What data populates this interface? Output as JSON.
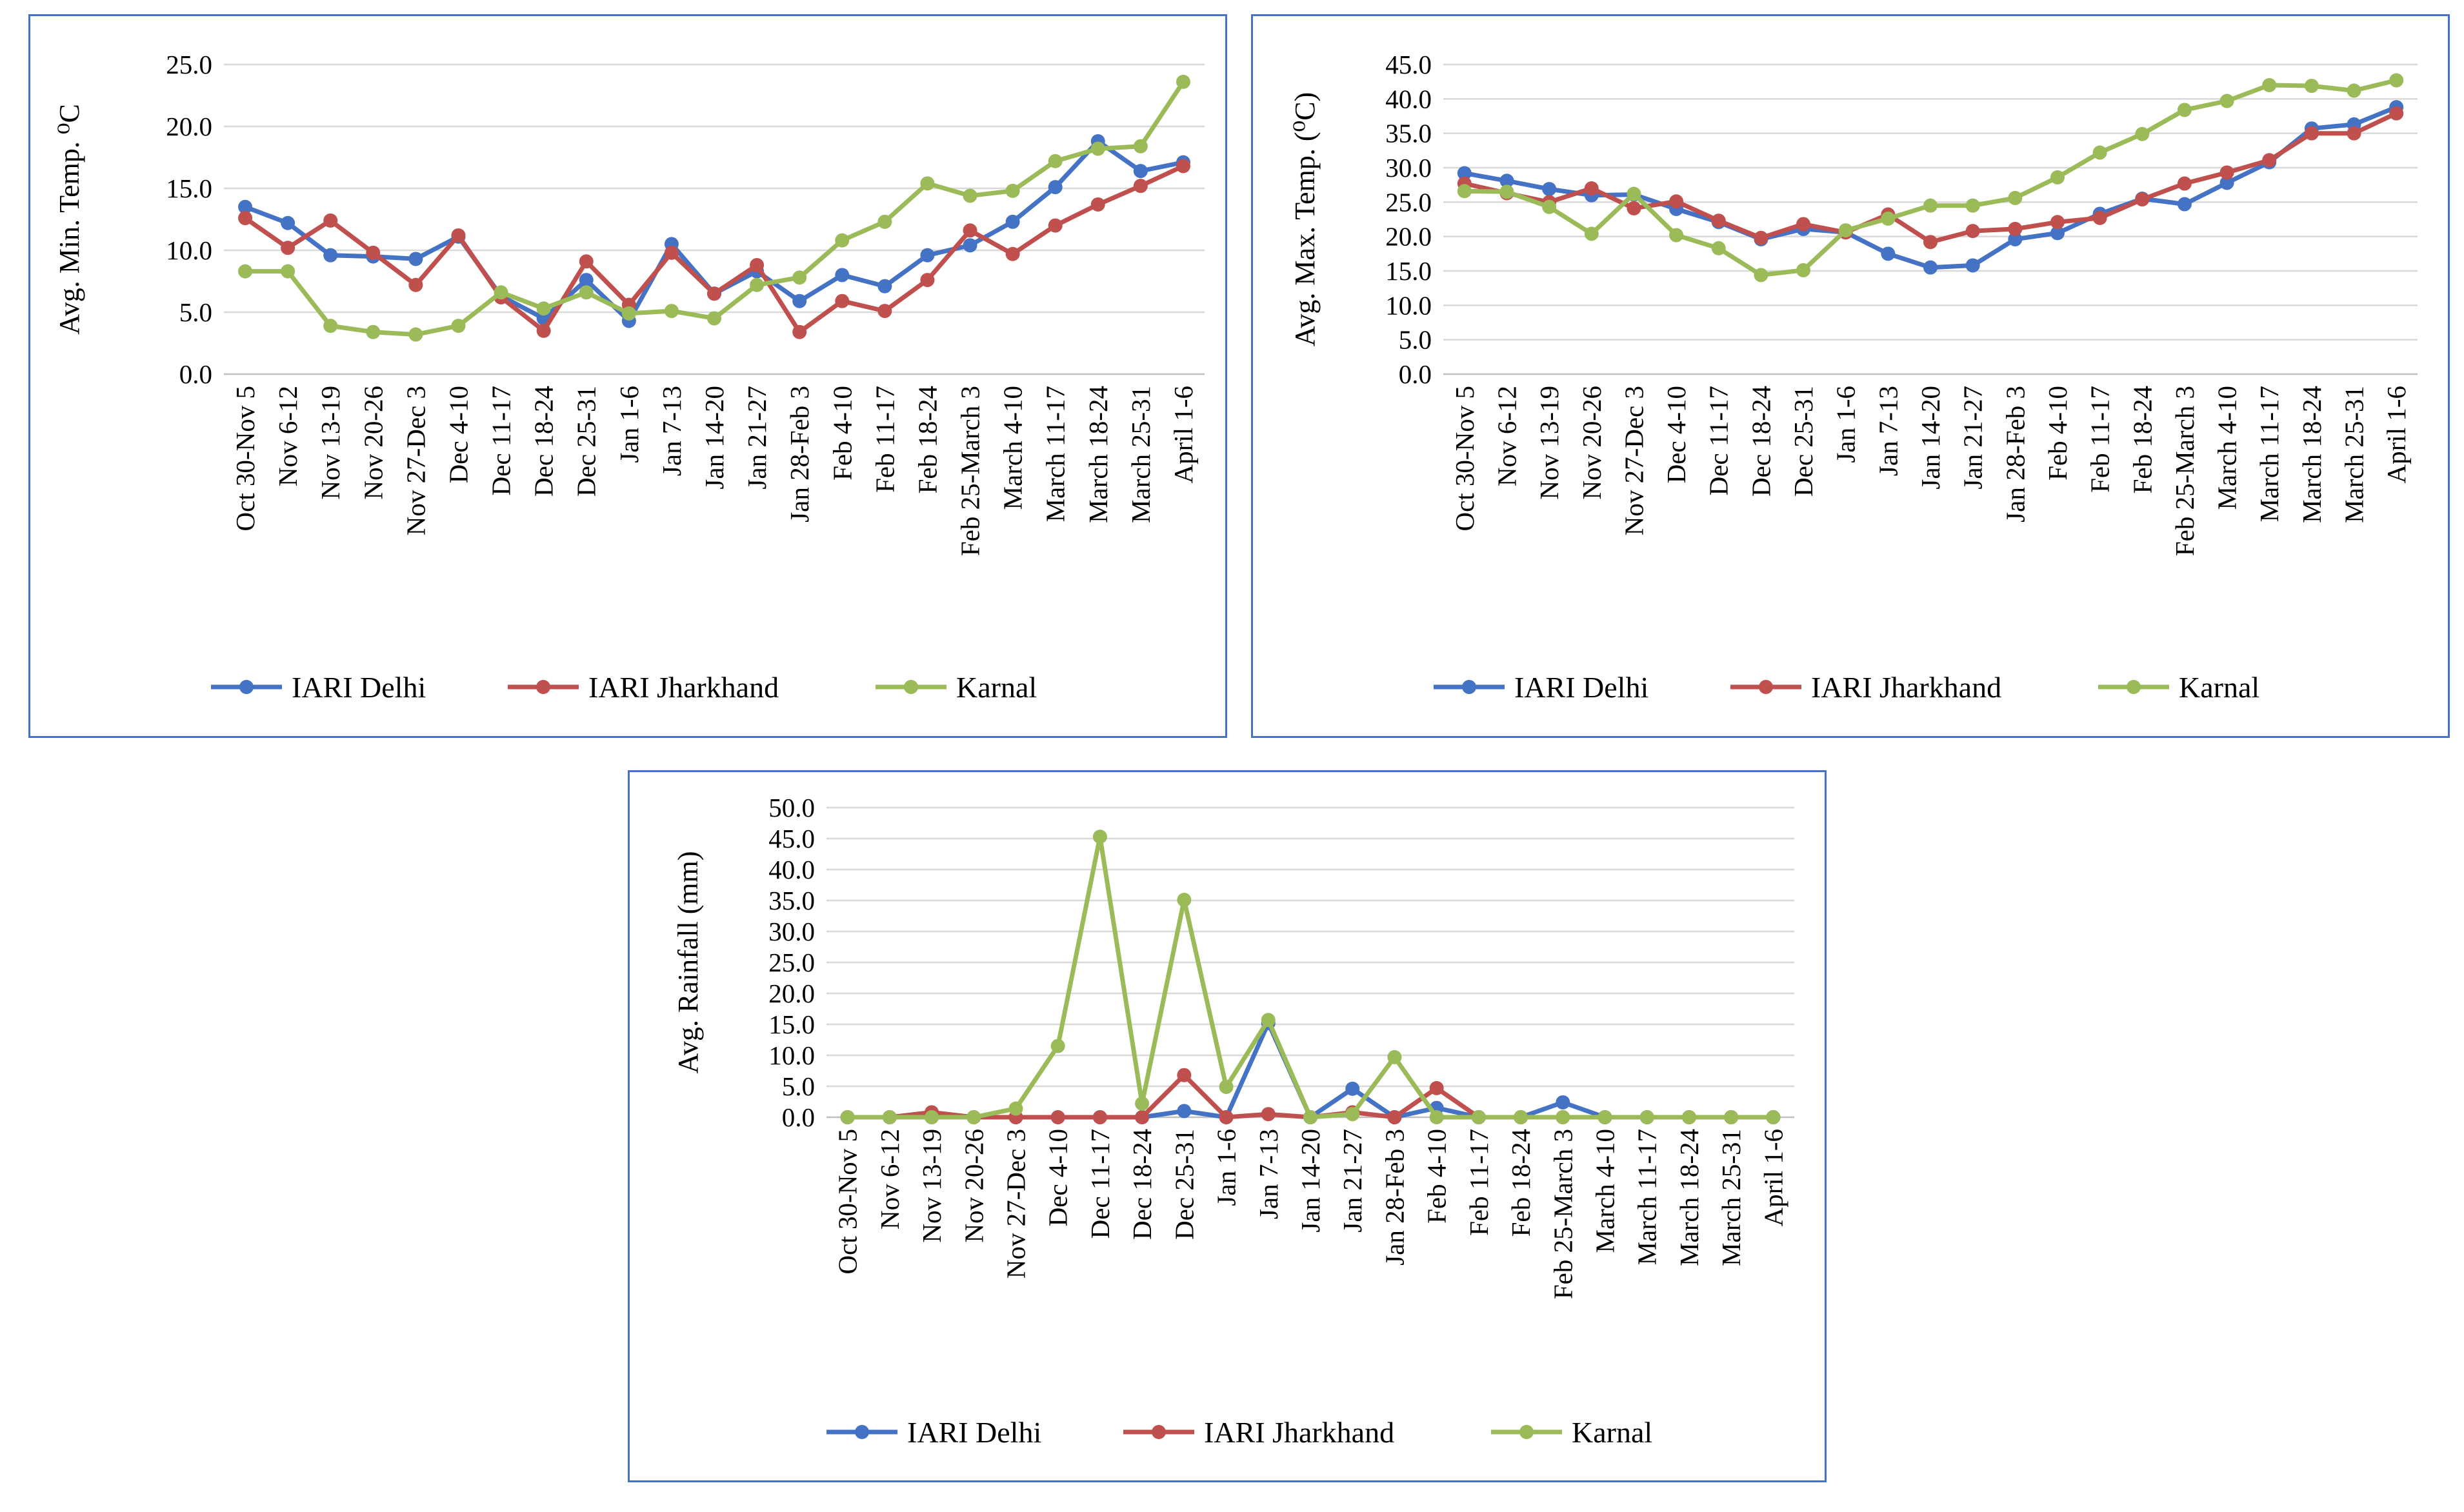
{
  "categories": [
    "Oct 30-Nov 5",
    "Nov 6-12",
    "Nov 13-19",
    "Nov 20-26",
    "Nov 27-Dec 3",
    "Dec 4-10",
    "Dec 11-17",
    "Dec 18-24",
    "Dec 25-31",
    "Jan 1-6",
    "Jan 7-13",
    "Jan 14-20",
    "Jan 21-27",
    "Jan 28-Feb 3",
    "Feb 4-10",
    "Feb 11-17",
    "Feb 18-24",
    "Feb 25-March 3",
    "March 4-10",
    "March 11-17",
    "March 18-24",
    "March 25-31",
    "April 1-6"
  ],
  "colors": {
    "IARI Delhi": "#4472C4",
    "IARI Jharkhand": "#C0504D",
    "Karnal": "#9BBB59"
  },
  "chart_data": [
    {
      "type": "line",
      "id": "min",
      "ylabel": "Avg. Min. Temp. ⁰C",
      "ylim": [
        0,
        25
      ],
      "yticks": [
        "0.0",
        "5.0",
        "10.0",
        "15.0",
        "20.0",
        "25.0"
      ],
      "tick_values": [
        0,
        5,
        10,
        15,
        20,
        25
      ],
      "legend_position": "bottom",
      "series": [
        {
          "name": "IARI Delhi",
          "values": [
            13.5,
            12.2,
            9.6,
            9.5,
            9.3,
            11.1,
            6.3,
            4.5,
            7.6,
            4.3,
            10.5,
            6.5,
            8.3,
            5.9,
            8,
            7.1,
            9.6,
            10.4,
            12.3,
            15.1,
            18.8,
            16.4,
            17.1
          ]
        },
        {
          "name": "IARI Jharkhand",
          "values": [
            12.6,
            10.2,
            12.4,
            9.8,
            7.2,
            11.2,
            6.2,
            3.5,
            9.1,
            5.6,
            9.8,
            6.5,
            8.8,
            3.4,
            5.9,
            5.1,
            7.6,
            11.6,
            9.7,
            12,
            13.7,
            15.2,
            16.8
          ]
        },
        {
          "name": "Karnal",
          "values": [
            8.3,
            8.3,
            3.9,
            3.4,
            3.2,
            3.9,
            6.6,
            5.3,
            6.6,
            4.9,
            5.1,
            4.5,
            7.2,
            7.8,
            10.8,
            12.3,
            15.4,
            14.4,
            14.8,
            17.2,
            18.2,
            18.4,
            23.6
          ]
        }
      ]
    },
    {
      "type": "line",
      "id": "max",
      "ylabel": "Avg. Max. Temp. (⁰C)",
      "ylim": [
        0,
        45
      ],
      "yticks": [
        "0.0",
        "5.0",
        "10.0",
        "15.0",
        "20.0",
        "25.0",
        "30.0",
        "35.0",
        "40.0",
        "45.0"
      ],
      "tick_values": [
        0,
        5,
        10,
        15,
        20,
        25,
        30,
        35,
        40,
        45
      ],
      "legend_position": "bottom",
      "series": [
        {
          "name": "IARI Delhi",
          "values": [
            29.2,
            28.1,
            26.9,
            26,
            26.1,
            24,
            22.1,
            19.6,
            21.1,
            20.6,
            17.5,
            15.5,
            15.8,
            19.6,
            20.5,
            23.3,
            25.5,
            24.7,
            27.8,
            30.8,
            35.7,
            36.3,
            38.8
          ]
        },
        {
          "name": "IARI Jharkhand",
          "values": [
            27.7,
            26.3,
            25,
            27,
            24.1,
            25.1,
            22.3,
            19.8,
            21.8,
            20.6,
            23.2,
            19.2,
            20.8,
            21.1,
            22.1,
            22.7,
            25.4,
            27.7,
            29.3,
            31.1,
            35,
            35,
            37.9
          ]
        },
        {
          "name": "Karnal",
          "values": [
            26.6,
            26.5,
            24.3,
            20.4,
            26.2,
            20.2,
            18.3,
            14.4,
            15.1,
            20.9,
            22.6,
            24.5,
            24.5,
            25.6,
            28.6,
            32.2,
            34.9,
            38.4,
            39.7,
            42,
            41.9,
            41.2,
            42.7
          ]
        }
      ]
    },
    {
      "type": "line",
      "id": "rain",
      "ylabel": "Avg. Rainfall (mm)",
      "ylim": [
        0,
        50
      ],
      "yticks": [
        "0.0",
        "5.0",
        "10.0",
        "15.0",
        "20.0",
        "25.0",
        "30.0",
        "35.0",
        "40.0",
        "45.0",
        "50.0"
      ],
      "tick_values": [
        0,
        5,
        10,
        15,
        20,
        25,
        30,
        35,
        40,
        45,
        50
      ],
      "legend_position": "bottom",
      "series": [
        {
          "name": "IARI Delhi",
          "values": [
            0,
            0,
            0,
            0,
            0,
            0,
            0,
            0,
            1,
            0,
            15.2,
            0,
            4.6,
            0,
            1.5,
            0,
            0,
            2.4,
            0,
            0,
            0,
            0,
            0
          ]
        },
        {
          "name": "IARI Jharkhand",
          "values": [
            0,
            0,
            0.8,
            0,
            0,
            0,
            0,
            0,
            6.8,
            0,
            0.5,
            0,
            0.8,
            0,
            4.7,
            0,
            0,
            0,
            0,
            0,
            0,
            0,
            0
          ]
        },
        {
          "name": "Karnal",
          "values": [
            0,
            0,
            0,
            0,
            1.4,
            11.5,
            45.3,
            2.2,
            35.1,
            4.9,
            15.7,
            0,
            0.5,
            9.7,
            0,
            0,
            0,
            0,
            0,
            0,
            0,
            0,
            0
          ]
        }
      ]
    }
  ]
}
